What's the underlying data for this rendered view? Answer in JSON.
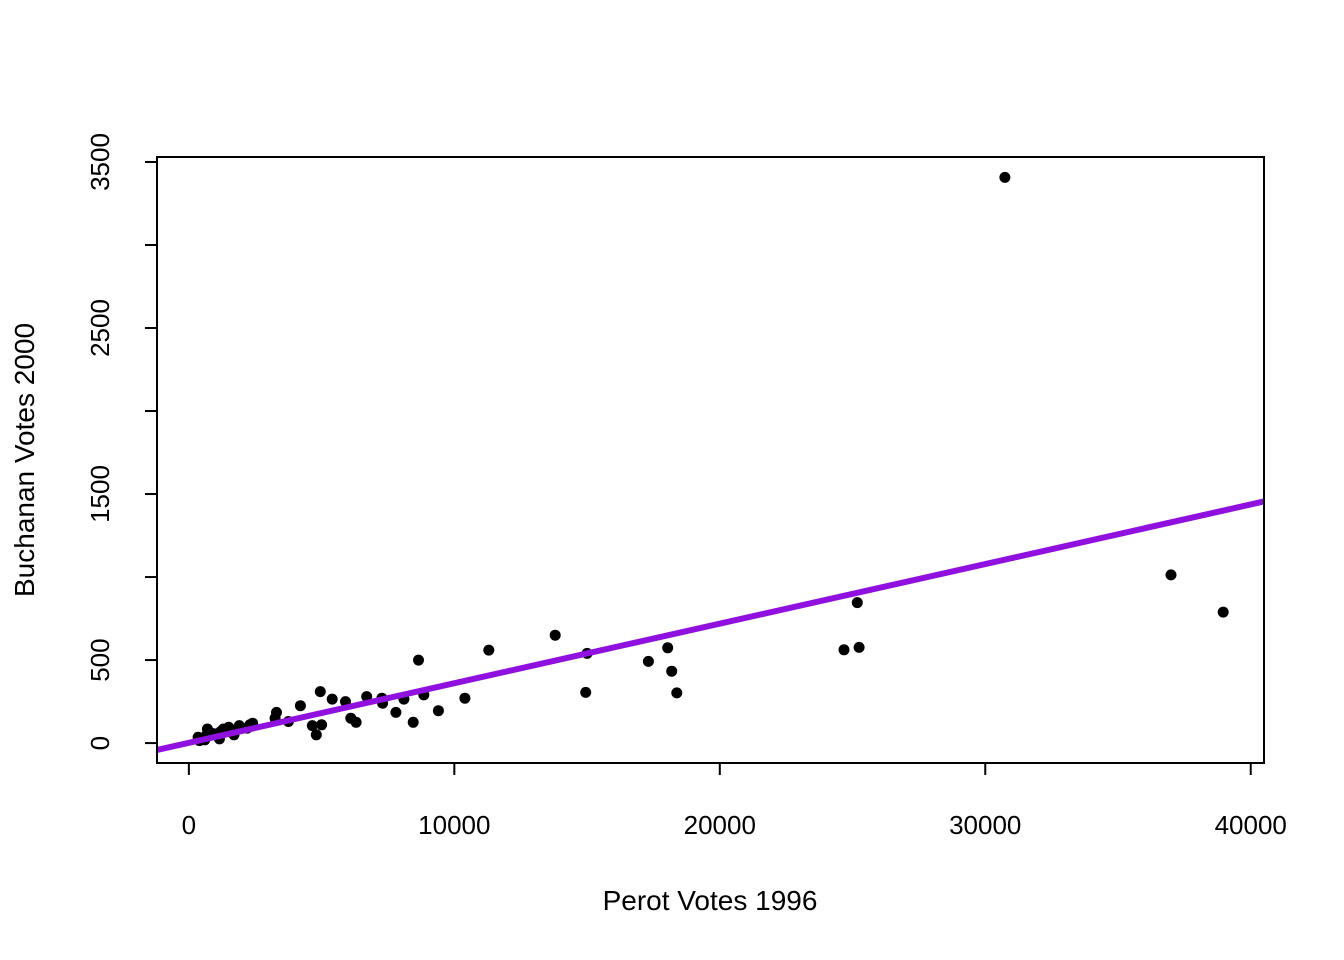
{
  "chart_data": {
    "type": "scatter",
    "title": "",
    "xlabel": "Perot Votes 1996",
    "ylabel": "Buchanan Votes 2000",
    "xlim": [
      -1200,
      40500
    ],
    "ylim": [
      -120,
      3530
    ],
    "x_ticks": [
      0,
      10000,
      20000,
      30000,
      40000
    ],
    "x_tick_labels": [
      "0",
      "10000",
      "20000",
      "30000",
      "40000"
    ],
    "y_ticks": [
      0,
      500,
      1000,
      1500,
      2000,
      2500,
      3000,
      3500
    ],
    "y_tick_labels": [
      "0",
      "500",
      "",
      "1500",
      "",
      "2500",
      "",
      "3500"
    ],
    "grid": false,
    "point_color": "#000000",
    "fit_line": {
      "intercept": 1.35,
      "slope": 0.0359,
      "color": "#9010E0"
    },
    "points": [
      [
        30739,
        3407
      ],
      [
        36995,
        1013
      ],
      [
        38964,
        789
      ],
      [
        25249,
        576
      ],
      [
        24679,
        562
      ],
      [
        25178,
        846
      ],
      [
        17309,
        492
      ],
      [
        18038,
        574
      ],
      [
        18190,
        433
      ],
      [
        18380,
        302
      ],
      [
        15000,
        540
      ],
      [
        14950,
        305
      ],
      [
        13800,
        650
      ],
      [
        11300,
        560
      ],
      [
        10400,
        270
      ],
      [
        9400,
        195
      ],
      [
        8850,
        290
      ],
      [
        8650,
        500
      ],
      [
        8450,
        125
      ],
      [
        8100,
        265
      ],
      [
        7800,
        185
      ],
      [
        7300,
        240
      ],
      [
        7270,
        270
      ],
      [
        6700,
        280
      ],
      [
        6300,
        125
      ],
      [
        6100,
        150
      ],
      [
        5900,
        250
      ],
      [
        5400,
        265
      ],
      [
        5000,
        110
      ],
      [
        4950,
        310
      ],
      [
        4800,
        50
      ],
      [
        4650,
        105
      ],
      [
        4200,
        225
      ],
      [
        3750,
        130
      ],
      [
        3300,
        185
      ],
      [
        3250,
        150
      ],
      [
        2400,
        120
      ],
      [
        2300,
        110
      ],
      [
        2200,
        90
      ],
      [
        1900,
        105
      ],
      [
        1850,
        90
      ],
      [
        1700,
        50
      ],
      [
        1600,
        80
      ],
      [
        1500,
        95
      ],
      [
        1300,
        85
      ],
      [
        1200,
        70
      ],
      [
        1150,
        25
      ],
      [
        1000,
        55
      ],
      [
        850,
        60
      ],
      [
        700,
        85
      ],
      [
        650,
        45
      ],
      [
        600,
        20
      ],
      [
        500,
        30
      ],
      [
        400,
        15
      ],
      [
        350,
        35
      ]
    ]
  }
}
